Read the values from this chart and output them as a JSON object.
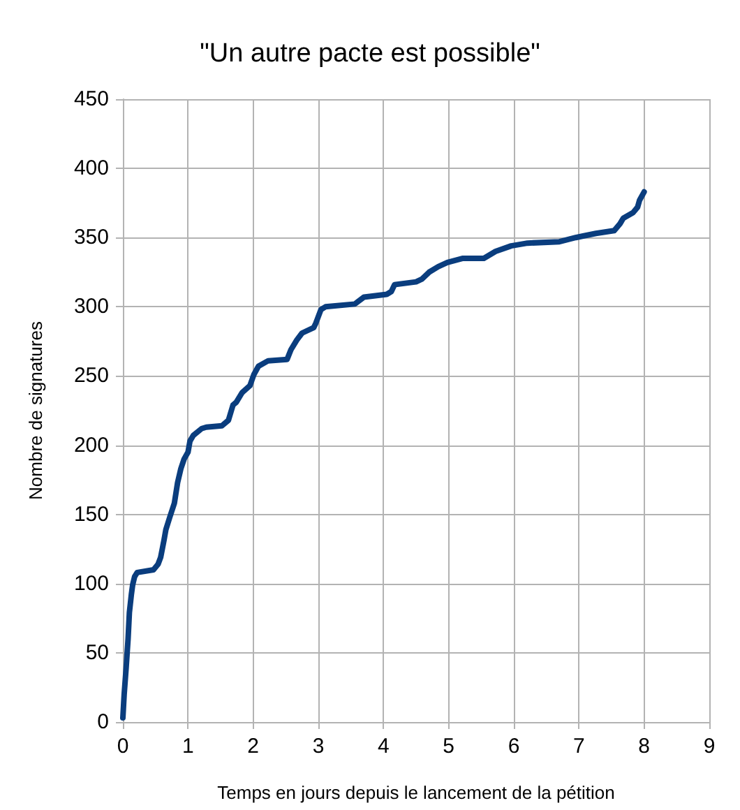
{
  "chart_data": {
    "type": "line",
    "title": "\"Un autre pacte est possible\"",
    "xlabel": "Temps en jours depuis le lancement de la pétition",
    "ylabel": "Nombre de signatures",
    "x": [
      0,
      0.02,
      0.05,
      0.08,
      0.1,
      0.13,
      0.15,
      0.18,
      0.22,
      0.47,
      0.54,
      0.58,
      0.63,
      0.66,
      0.72,
      0.79,
      0.84,
      0.89,
      0.94,
      1.0,
      1.03,
      1.08,
      1.21,
      1.28,
      1.52,
      1.62,
      1.69,
      1.74,
      1.83,
      1.95,
      2.01,
      2.08,
      2.23,
      2.52,
      2.58,
      2.67,
      2.75,
      2.93,
      2.96,
      3.04,
      3.11,
      3.56,
      3.7,
      4.05,
      4.12,
      4.17,
      4.5,
      4.59,
      4.7,
      4.84,
      4.98,
      5.22,
      5.54,
      5.72,
      5.96,
      6.21,
      6.7,
      6.95,
      7.05,
      7.26,
      7.54,
      7.63,
      7.68,
      7.83,
      7.9,
      7.93,
      8.0
    ],
    "values": [
      3,
      20,
      39,
      60,
      79,
      92,
      99,
      105,
      108,
      110,
      114,
      119,
      131,
      139,
      148,
      158,
      173,
      183,
      190,
      195,
      203,
      207,
      212,
      213,
      214,
      218,
      229,
      231,
      238,
      243,
      251,
      257,
      261,
      262,
      269,
      276,
      281,
      285,
      288,
      298,
      300,
      302,
      307,
      309,
      311,
      316,
      318,
      320,
      325,
      329,
      332,
      335,
      335,
      340,
      344,
      346,
      347,
      350,
      351,
      353,
      355,
      360,
      364,
      368,
      372,
      377,
      383
    ],
    "color": "#0a3d7e",
    "xlim": [
      0,
      9
    ],
    "ylim": [
      0,
      450
    ],
    "xticks": [
      0,
      1,
      2,
      3,
      4,
      5,
      6,
      7,
      8,
      9
    ],
    "yticks": [
      0,
      50,
      100,
      150,
      200,
      250,
      300,
      350,
      400,
      450
    ],
    "grid": true,
    "marker": "none",
    "line_style": "solid"
  }
}
